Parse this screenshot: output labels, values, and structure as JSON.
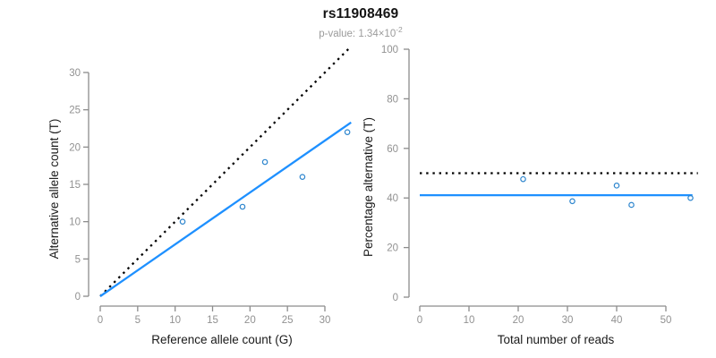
{
  "header": {
    "title": "rs11908469",
    "subtitle_prefix": "p-value: 1.34×10",
    "subtitle_exponent": "-2"
  },
  "colors": {
    "accent_line": "#1E90FF",
    "point_stroke": "#2E86CE",
    "reference_line": "#000000",
    "axis": "#8c8c8c",
    "tick_label": "#919191",
    "axis_title": "#1a1a1a"
  },
  "chart_data": [
    {
      "type": "scatter",
      "title": "",
      "xlabel": "Reference allele count (G)",
      "ylabel": "Alternative allele count (T)",
      "xlim": [
        0,
        33.5
      ],
      "ylim": [
        0,
        33.5
      ],
      "xticks": [
        0,
        5,
        10,
        15,
        20,
        25,
        30
      ],
      "yticks": [
        0,
        5,
        10,
        15,
        20,
        25,
        30
      ],
      "grid": false,
      "legend": false,
      "points": [
        [
          11,
          10
        ],
        [
          19,
          12
        ],
        [
          22,
          18
        ],
        [
          27,
          16
        ],
        [
          33,
          22
        ]
      ],
      "lines": [
        {
          "name": "identity-line",
          "style": "dotted",
          "color_key": "reference_line",
          "x": [
            0,
            33.2
          ],
          "y": [
            0,
            33.2
          ]
        },
        {
          "name": "fit-line",
          "style": "solid",
          "color_key": "accent_line",
          "x": [
            0,
            33.5
          ],
          "y": [
            0,
            23.3
          ]
        }
      ]
    },
    {
      "type": "scatter",
      "title": "",
      "xlabel": "Total number of reads",
      "ylabel": "Percentage alternative (T)",
      "xlim": [
        0,
        56.5
      ],
      "ylim": [
        0,
        100
      ],
      "xticks": [
        0,
        10,
        20,
        30,
        40,
        50
      ],
      "yticks": [
        0,
        20,
        40,
        60,
        80,
        100
      ],
      "grid": false,
      "legend": false,
      "points": [
        [
          21,
          47.6
        ],
        [
          31,
          38.7
        ],
        [
          40,
          45.0
        ],
        [
          43,
          37.2
        ],
        [
          55,
          40.0
        ]
      ],
      "lines": [
        {
          "name": "expected-50pct-line",
          "style": "dotted",
          "color_key": "reference_line",
          "x": [
            0,
            56.5
          ],
          "y": [
            50,
            50
          ]
        },
        {
          "name": "fit-line",
          "style": "solid",
          "color_key": "accent_line",
          "x": [
            0,
            55.4
          ],
          "y": [
            41.1,
            41.1
          ]
        }
      ]
    }
  ]
}
